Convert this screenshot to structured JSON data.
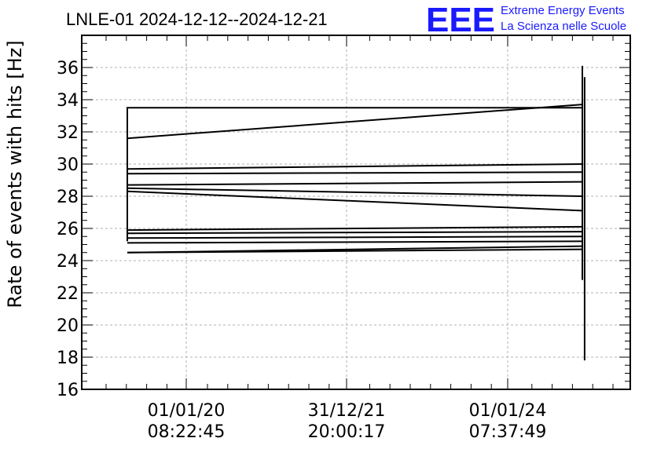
{
  "chart_data": {
    "type": "line",
    "title": "LNLE-01 2024-12-12--2024-12-21",
    "ylabel": "Rate of events with hits [Hz]",
    "xlabel": "",
    "ylim": [
      16,
      38
    ],
    "yticks": [
      16,
      18,
      20,
      22,
      24,
      26,
      28,
      30,
      32,
      34,
      36
    ],
    "xtick_labels": [
      {
        "date": "01/01/20",
        "time": "08:22:45"
      },
      {
        "date": "31/12/21",
        "time": "20:00:17"
      },
      {
        "date": "01/01/24",
        "time": "07:37:49"
      }
    ],
    "grid": true,
    "series": [
      {
        "values": [
          [
            0.0,
            25.2
          ],
          [
            0.0,
            33.5
          ],
          [
            1.0,
            33.5
          ]
        ]
      },
      {
        "values": [
          [
            0.0,
            31.6
          ],
          [
            1.0,
            33.7
          ]
        ]
      },
      {
        "values": [
          [
            0.0,
            29.7
          ],
          [
            1.0,
            30.0
          ]
        ]
      },
      {
        "values": [
          [
            0.0,
            29.4
          ],
          [
            1.0,
            29.5
          ]
        ]
      },
      {
        "values": [
          [
            0.0,
            28.7
          ],
          [
            1.0,
            28.9
          ]
        ]
      },
      {
        "values": [
          [
            0.0,
            28.5
          ],
          [
            1.0,
            28.0
          ]
        ]
      },
      {
        "values": [
          [
            0.0,
            28.3
          ],
          [
            1.0,
            27.1
          ]
        ]
      },
      {
        "values": [
          [
            0.0,
            25.9
          ],
          [
            1.0,
            26.1
          ]
        ]
      },
      {
        "values": [
          [
            0.0,
            25.7
          ],
          [
            1.0,
            25.8
          ]
        ]
      },
      {
        "values": [
          [
            0.0,
            25.4
          ],
          [
            1.0,
            25.5
          ]
        ]
      },
      {
        "values": [
          [
            0.0,
            25.1
          ],
          [
            1.0,
            25.2
          ]
        ]
      },
      {
        "values": [
          [
            0.0,
            24.5
          ],
          [
            1.0,
            24.9
          ]
        ]
      },
      {
        "values": [
          [
            0.0,
            24.5
          ],
          [
            1.0,
            24.7
          ]
        ]
      },
      {
        "values": [
          [
            1.0,
            36.1
          ],
          [
            1.0,
            22.8
          ]
        ]
      },
      {
        "values": [
          [
            1.005,
            35.4
          ],
          [
            1.005,
            17.8
          ]
        ]
      }
    ]
  },
  "logo": {
    "mark": "EEE",
    "line1": "Extreme Energy Events",
    "line2": "La Scienza nelle Scuole",
    "color": "#1a1aff"
  },
  "colors": {
    "line": "#000000",
    "grid": "#b0b0b0"
  }
}
